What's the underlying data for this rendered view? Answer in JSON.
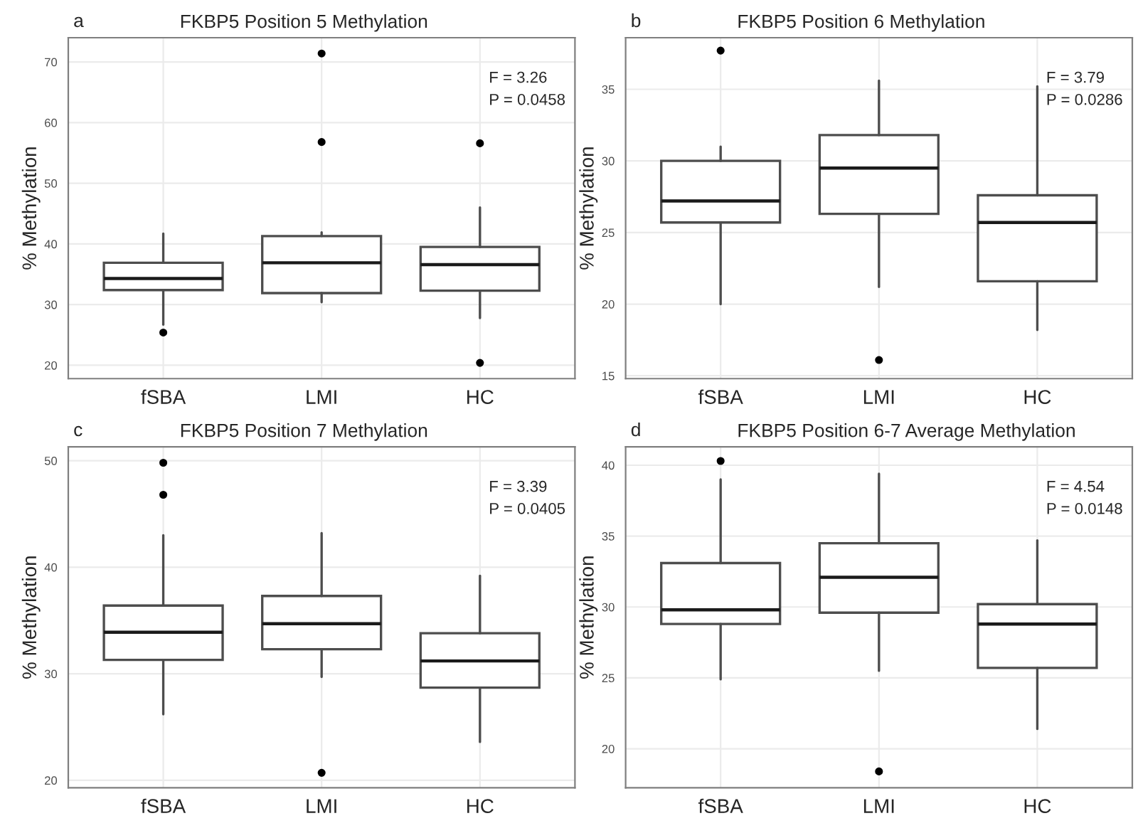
{
  "chart_data": [
    {
      "type": "box",
      "title": "FKBP5 Position 5 Methylation",
      "ylabel": "% Methylation",
      "categories": [
        "fSBA",
        "LMI",
        "HC"
      ],
      "annotations": [
        "a",
        "F = 3.26",
        "P = 0.0458"
      ],
      "ylim": [
        17.8,
        74
      ],
      "yticks": [
        20,
        30,
        40,
        50,
        60,
        70
      ],
      "grid": true,
      "boxes": [
        {
          "low": 26.7,
          "q1": 32.4,
          "median": 34.3,
          "q3": 36.9,
          "high": 41.7,
          "outliers": [
            25.4
          ]
        },
        {
          "low": 30.4,
          "q1": 31.9,
          "median": 36.9,
          "q3": 41.3,
          "high": 41.9,
          "outliers": [
            71.4,
            56.8
          ]
        },
        {
          "low": 27.8,
          "q1": 32.3,
          "median": 36.6,
          "q3": 39.5,
          "high": 46.0,
          "outliers": [
            56.6,
            20.4
          ]
        }
      ]
    },
    {
      "type": "box",
      "title": "FKBP5 Position 6 Methylation",
      "ylabel": "% Methylation",
      "categories": [
        "fSBA",
        "LMI",
        "HC"
      ],
      "annotations": [
        "b",
        "F = 3.79",
        "P = 0.0286"
      ],
      "ylim": [
        14.8,
        38.6
      ],
      "yticks": [
        15,
        20,
        25,
        30,
        35
      ],
      "grid": true,
      "boxes": [
        {
          "low": 20.0,
          "q1": 25.7,
          "median": 27.2,
          "q3": 30.0,
          "high": 31.0,
          "outliers": [
            37.7
          ]
        },
        {
          "low": 21.2,
          "q1": 26.3,
          "median": 29.5,
          "q3": 31.8,
          "high": 35.6,
          "outliers": [
            16.1
          ]
        },
        {
          "low": 18.2,
          "q1": 21.6,
          "median": 25.7,
          "q3": 27.6,
          "high": 35.2
        }
      ]
    },
    {
      "type": "box",
      "title": "FKBP5 Position 7 Methylation",
      "ylabel": "% Methylation",
      "categories": [
        "fSBA",
        "LMI",
        "HC"
      ],
      "annotations": [
        "c",
        "F = 3.39",
        "P = 0.0405"
      ],
      "ylim": [
        19.3,
        51.3
      ],
      "yticks": [
        20,
        30,
        40,
        50
      ],
      "grid": true,
      "boxes": [
        {
          "low": 26.2,
          "q1": 31.3,
          "median": 33.9,
          "q3": 36.4,
          "high": 43.0,
          "outliers": [
            49.8,
            46.8
          ]
        },
        {
          "low": 29.7,
          "q1": 32.3,
          "median": 34.7,
          "q3": 37.3,
          "high": 43.2,
          "outliers": [
            20.7
          ]
        },
        {
          "low": 23.6,
          "q1": 28.7,
          "median": 31.2,
          "q3": 33.8,
          "high": 39.2
        }
      ]
    },
    {
      "type": "box",
      "title": "FKBP5 Position 6-7 Average Methylation",
      "ylabel": "% Methylation",
      "categories": [
        "fSBA",
        "LMI",
        "HC"
      ],
      "annotations": [
        "d",
        "F = 4.54",
        "P = 0.0148"
      ],
      "ylim": [
        17.25,
        41.3
      ],
      "yticks": [
        20,
        25,
        30,
        35,
        40
      ],
      "grid": true,
      "boxes": [
        {
          "low": 24.9,
          "q1": 28.8,
          "median": 29.8,
          "q3": 33.1,
          "high": 39.0,
          "outliers": [
            40.3
          ]
        },
        {
          "low": 25.5,
          "q1": 29.6,
          "median": 32.1,
          "q3": 34.5,
          "high": 39.4,
          "outliers": [
            18.4
          ]
        },
        {
          "low": 21.4,
          "q1": 25.7,
          "median": 28.8,
          "q3": 30.2,
          "high": 34.7
        }
      ]
    }
  ]
}
